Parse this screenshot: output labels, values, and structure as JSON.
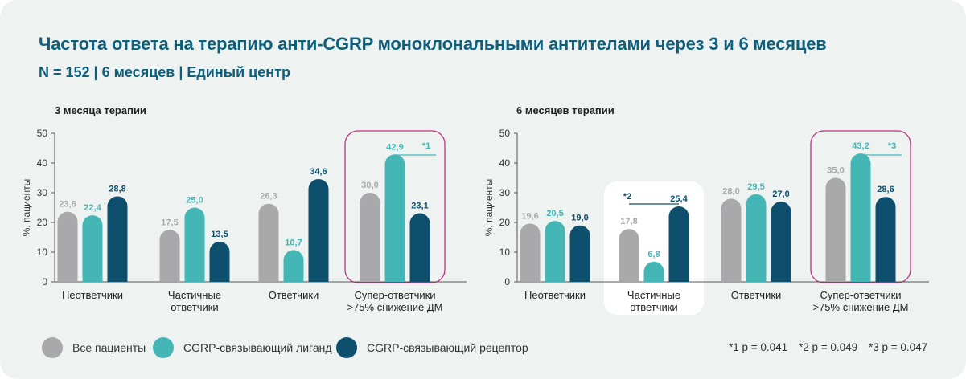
{
  "title": "Частота ответа на терапию анти-CGRP моноклональными антителами через 3 и 6 месяцев",
  "subtitle": "N = 152 | 6 месяцев | Единый центр",
  "colors": {
    "all": "#a9a9ab",
    "ligand": "#45b6b6",
    "receptor": "#0d4f6c",
    "highlight": "#c2317f"
  },
  "legend": [
    "Все пациенты",
    "CGRP-связывающий лиганд",
    "CGRP-связывающий рецептор"
  ],
  "pvalues": [
    "*1 p = 0.041",
    "*2 p = 0.049",
    "*3 p = 0.047"
  ],
  "chart_data": [
    {
      "type": "bar",
      "title": "3 месяца терапии",
      "ylabel": "%, пациенты",
      "ylim": [
        0,
        50
      ],
      "yticks": [
        0,
        10,
        20,
        30,
        40,
        50
      ],
      "categories": [
        "Неответчики",
        "Частичные ответчики",
        "Ответчики",
        "Супер-ответчики >75% снижение ДМ"
      ],
      "category_lines": [
        [
          "Неответчики"
        ],
        [
          "Частичные",
          "ответчики"
        ],
        [
          "Ответчики"
        ],
        [
          "Супер-ответчики",
          ">75% снижение ДМ"
        ]
      ],
      "series": [
        {
          "name": "Все пациенты",
          "values": [
            23.6,
            17.5,
            26.3,
            30.0
          ],
          "labels": [
            "23,6",
            "17,5",
            "26,3",
            "30,0"
          ]
        },
        {
          "name": "CGRP-связывающий лиганд",
          "values": [
            22.4,
            25.0,
            10.7,
            42.9
          ],
          "labels": [
            "22,4",
            "25,0",
            "10,7",
            "42,9"
          ]
        },
        {
          "name": "CGRP-связывающий рецептор",
          "values": [
            28.8,
            13.5,
            34.6,
            23.1
          ],
          "labels": [
            "28,8",
            "13,5",
            "34,6",
            "23,1"
          ]
        }
      ],
      "highlight": {
        "category_index": 3,
        "style": "outlined",
        "annotation": "*1",
        "compare": [
          1,
          2
        ]
      }
    },
    {
      "type": "bar",
      "title": "6 месяцев терапии",
      "ylabel": "%, пациенты",
      "ylim": [
        0,
        50
      ],
      "yticks": [
        0,
        10,
        20,
        30,
        40,
        50
      ],
      "categories": [
        "Неответчики",
        "Частичные ответчики",
        "Ответчики",
        "Супер-ответчики >75% снижение ДМ"
      ],
      "category_lines": [
        [
          "Неответчики"
        ],
        [
          "Частичные",
          "ответчики"
        ],
        [
          "Ответчики"
        ],
        [
          "Супер-ответчики",
          ">75% снижение ДМ"
        ]
      ],
      "series": [
        {
          "name": "Все пациенты",
          "values": [
            19.6,
            17.8,
            28.0,
            35.0
          ],
          "labels": [
            "19,6",
            "17,8",
            "28,0",
            "35,0"
          ]
        },
        {
          "name": "CGRP-связывающий лиганд",
          "values": [
            20.5,
            6.8,
            29.5,
            43.2
          ],
          "labels": [
            "20,5",
            "6,8",
            "29,5",
            "43,2"
          ]
        },
        {
          "name": "CGRP-связывающий рецептор",
          "values": [
            19.0,
            25.4,
            27.0,
            28.6
          ],
          "labels": [
            "19,0",
            "25,4",
            "27,0",
            "28,6"
          ]
        }
      ],
      "highlights": [
        {
          "category_index": 1,
          "style": "white",
          "annotation": "*2",
          "compare": [
            0,
            2
          ]
        },
        {
          "category_index": 3,
          "style": "outlined",
          "annotation": "*3",
          "compare": [
            1,
            2
          ]
        }
      ]
    }
  ]
}
